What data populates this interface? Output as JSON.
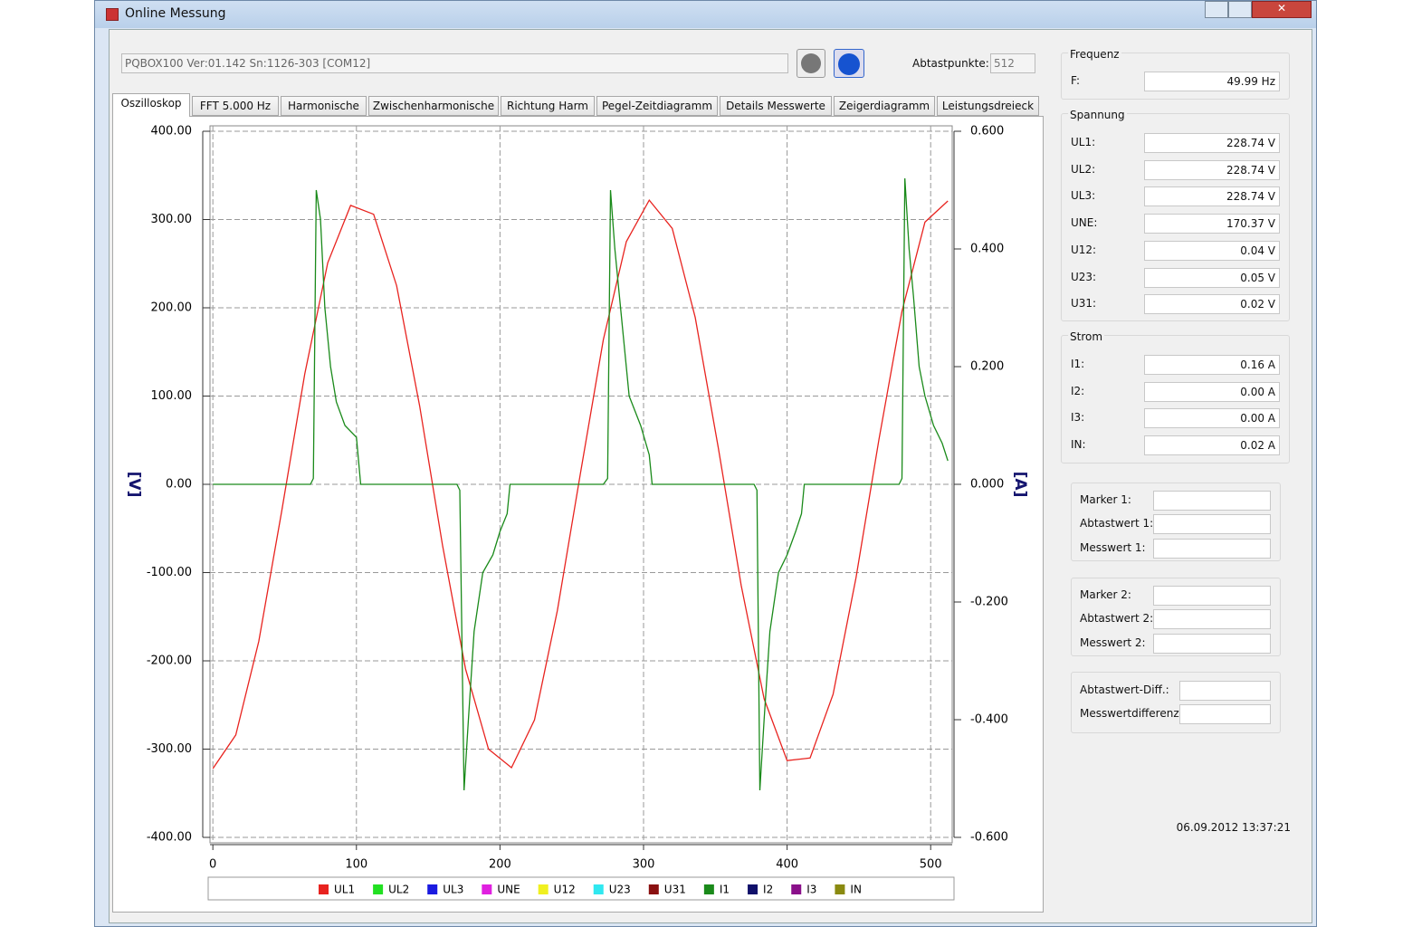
{
  "window": {
    "title": "Online Messung"
  },
  "toolbar": {
    "device": "PQBOX100 Ver:01.142 Sn:1126-303 [COM12]",
    "samples_label": "Abtastpunkte:",
    "samples_value": "512"
  },
  "tabs": [
    "Oszilloskop",
    "FFT 5.000 Hz",
    "Harmonische",
    "Zwischenharmonische",
    "Richtung Harm",
    "Pegel-Zeitdiagramm",
    "Details Messwerte",
    "Zeigerdiagramm",
    "Leistungsdreieck"
  ],
  "chart_data": {
    "type": "line",
    "y_label": "[V]",
    "y2_label": "[A]",
    "grid": true,
    "xlim": [
      -2,
      515
    ],
    "xticks": [
      0,
      100,
      200,
      300,
      400,
      500
    ],
    "ylim": [
      -400,
      400
    ],
    "yticks": [
      {
        "value": 400,
        "label": "400.00"
      },
      {
        "value": 300,
        "label": "300.00"
      },
      {
        "value": 200,
        "label": "200.00"
      },
      {
        "value": 100,
        "label": "100.00"
      },
      {
        "value": 0,
        "label": "0.00"
      },
      {
        "value": -100,
        "label": "-100.00"
      },
      {
        "value": -200,
        "label": "-200.00"
      },
      {
        "value": -300,
        "label": "-300.00"
      },
      {
        "value": -400,
        "label": "-400.00"
      }
    ],
    "y2lim": [
      -0.6,
      0.6
    ],
    "y2ticks": [
      {
        "value": 0.6,
        "label": "0.600"
      },
      {
        "value": 0.4,
        "label": "0.400"
      },
      {
        "value": 0.2,
        "label": "0.200"
      },
      {
        "value": 0,
        "label": "0.000"
      },
      {
        "value": -0.2,
        "label": "-0.200"
      },
      {
        "value": -0.4,
        "label": "-0.400"
      },
      {
        "value": -0.6,
        "label": "-0.600"
      }
    ],
    "series": [
      {
        "name": "UL1",
        "color": "#e8231f",
        "x": [
          0,
          16,
          32,
          48,
          64,
          80,
          96,
          112,
          128,
          144,
          160,
          176,
          192,
          208,
          224,
          240,
          256,
          272,
          288,
          304,
          320,
          336,
          352,
          368,
          384,
          400,
          416,
          432,
          448,
          464,
          480,
          496,
          512
        ],
        "values": [
          -322,
          -284,
          -178,
          -30,
          125,
          251,
          316,
          306,
          225,
          89,
          -69,
          -209,
          -300,
          -321,
          -267,
          -143,
          12,
          164,
          275,
          322,
          290,
          189,
          42,
          -114,
          -243,
          -313,
          -310,
          -238,
          -106,
          51,
          196,
          297,
          321
        ]
      },
      {
        "name": "I1",
        "color": "#1a8a1a",
        "axis": "y2",
        "x": [
          0,
          68,
          70,
          72,
          75,
          78,
          82,
          86,
          92,
          100,
          103,
          170,
          172,
          175,
          178,
          182,
          188,
          195,
          200,
          205,
          207,
          272,
          275,
          277,
          280,
          284,
          290,
          298,
          304,
          306,
          377,
          379,
          381,
          384,
          388,
          394,
          400,
          406,
          410,
          412,
          478,
          480,
          482,
          485,
          488,
          492,
          496,
          502,
          508,
          512
        ],
        "values": [
          0,
          0,
          0.01,
          0.5,
          0.45,
          0.3,
          0.2,
          0.14,
          0.1,
          0.08,
          0,
          0,
          -0.01,
          -0.52,
          -0.4,
          -0.25,
          -0.15,
          -0.12,
          -0.08,
          -0.05,
          0,
          0,
          0.01,
          0.5,
          0.4,
          0.3,
          0.15,
          0.1,
          0.05,
          0,
          0,
          -0.01,
          -0.52,
          -0.4,
          -0.25,
          -0.15,
          -0.12,
          -0.08,
          -0.05,
          0,
          0,
          0.01,
          0.52,
          0.4,
          0.32,
          0.2,
          0.15,
          0.1,
          0.07,
          0.04
        ]
      }
    ],
    "legend_entries": [
      {
        "name": "UL1",
        "color": "#e8231f"
      },
      {
        "name": "UL2",
        "color": "#22e022"
      },
      {
        "name": "UL3",
        "color": "#1a1ae0"
      },
      {
        "name": "UNE",
        "color": "#e020e0"
      },
      {
        "name": "U12",
        "color": "#f0f020"
      },
      {
        "name": "U23",
        "color": "#30e8f0"
      },
      {
        "name": "U31",
        "color": "#8a1010"
      },
      {
        "name": "I1",
        "color": "#1a8a1a"
      },
      {
        "name": "I2",
        "color": "#10106a"
      },
      {
        "name": "I3",
        "color": "#8a108a"
      },
      {
        "name": "IN",
        "color": "#8a8a10"
      }
    ]
  },
  "panel": [
    {
      "title": "Frequenz",
      "rows": [
        {
          "label": "F:",
          "value": "49.99 Hz"
        }
      ]
    },
    {
      "title": "Spannung",
      "rows": [
        {
          "label": "UL1:",
          "value": "228.74 V"
        },
        {
          "label": "UL2:",
          "value": "228.74 V"
        },
        {
          "label": "UL3:",
          "value": "228.74 V"
        },
        {
          "label": "UNE:",
          "value": "170.37 V"
        },
        {
          "label": "U12:",
          "value": "0.04 V"
        },
        {
          "label": "U23:",
          "value": "0.05 V"
        },
        {
          "label": "U31:",
          "value": "0.02 V"
        }
      ]
    },
    {
      "title": "Strom",
      "rows": [
        {
          "label": "I1:",
          "value": "0.16 A"
        },
        {
          "label": "I2:",
          "value": "0.00 A"
        },
        {
          "label": "I3:",
          "value": "0.00 A"
        },
        {
          "label": "IN:",
          "value": "0.02 A"
        }
      ]
    }
  ],
  "markers": [
    {
      "rows": [
        "Marker 1:",
        "Abtastwert 1:",
        "Messwert 1:"
      ]
    },
    {
      "rows": [
        "Marker 2:",
        "Abtastwert 2:",
        "Messwert 2:"
      ]
    },
    {
      "rows": [
        "Abtastwert-Diff.:",
        "Messwertdifferenz:"
      ]
    }
  ],
  "timestamp": "06.09.2012 13:37:21"
}
